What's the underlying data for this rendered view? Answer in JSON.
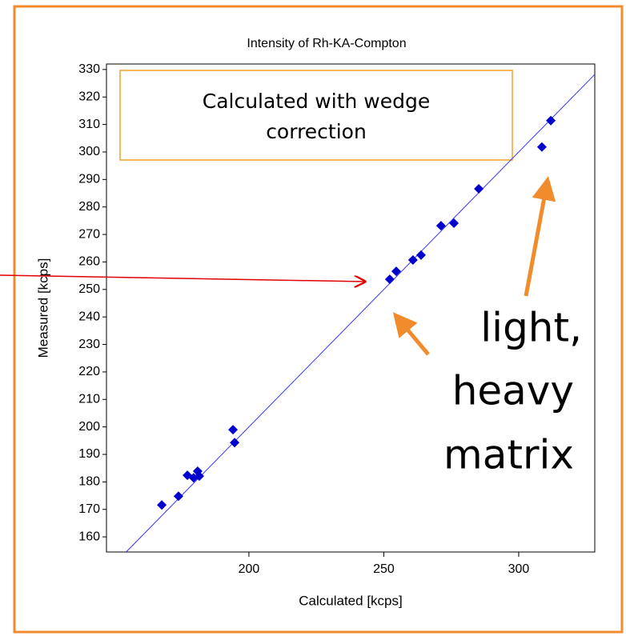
{
  "chart_data": {
    "type": "scatter",
    "title": "Intensity of Rh-KA-Compton",
    "x_label": "Calculated [kcps]",
    "y_label": "Measured [kcps]",
    "x": [
      167.7,
      173.9,
      177.2,
      179.5,
      181.0,
      181.6,
      194.1,
      194.7,
      252.2,
      254.6,
      260.8,
      263.8,
      271.2,
      276.0,
      285.2,
      308.6,
      311.9
    ],
    "values": [
      171.6,
      174.8,
      182.4,
      181.5,
      183.9,
      182.1,
      199.0,
      194.3,
      253.7,
      256.6,
      260.7,
      262.5,
      273.2,
      274.1,
      286.6,
      301.8,
      311.4
    ],
    "color": "#0000cc",
    "line_color": "#3333ff",
    "identity_line": true,
    "xlim": [
      147.2,
      328.2
    ],
    "ylim": [
      154.5,
      332
    ],
    "xticks": [
      200,
      250,
      300
    ],
    "yticks": [
      160,
      170,
      180,
      190,
      200,
      210,
      220,
      230,
      240,
      250,
      260,
      270,
      280,
      290,
      300,
      310,
      320,
      330
    ],
    "box_annotation": [
      "Calculated with wedge",
      "correction"
    ],
    "annotation": [
      "light,",
      "heavy",
      "matrix"
    ]
  }
}
